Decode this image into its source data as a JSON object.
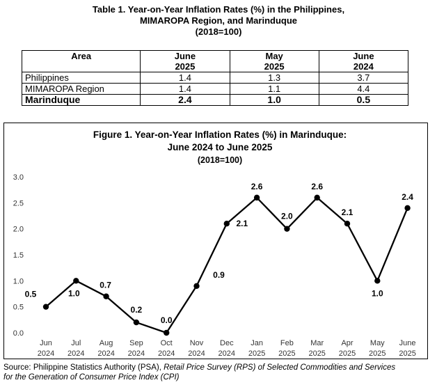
{
  "table": {
    "title_lines": [
      "Table 1. Year-on-Year Inflation Rates (%) in the Philippines,",
      "MIMAROPA Region, and Marinduque",
      "(2018=100)"
    ],
    "headers": [
      {
        "line1": "Area",
        "line2": ""
      },
      {
        "line1": "June",
        "line2": "2025"
      },
      {
        "line1": "May",
        "line2": "2025"
      },
      {
        "line1": "June",
        "line2": "2024"
      }
    ],
    "rows": [
      {
        "area": "Philippines",
        "values": [
          "1.4",
          "1.3",
          "3.7"
        ]
      },
      {
        "area": "MIMAROPA Region",
        "values": [
          "1.4",
          "1.1",
          "4.4"
        ]
      },
      {
        "area": "Marinduque",
        "values": [
          "2.4",
          "1.0",
          "0.5"
        ]
      }
    ]
  },
  "chart_data": {
    "type": "line",
    "title_lines": [
      "Figure 1. Year-on-Year Inflation Rates (%) in Marinduque:",
      "June 2024 to June 2025",
      "(2018=100)"
    ],
    "categories": [
      [
        "Jun",
        "2024"
      ],
      [
        "Jul",
        "2024"
      ],
      [
        "Aug",
        "2024"
      ],
      [
        "Sep",
        "2024"
      ],
      [
        "Oct",
        "2024"
      ],
      [
        "Nov",
        "2024"
      ],
      [
        "Dec",
        "2024"
      ],
      [
        "Jan",
        "2025"
      ],
      [
        "Feb",
        "2025"
      ],
      [
        "Mar",
        "2025"
      ],
      [
        "Apr",
        "2025"
      ],
      [
        "May",
        "2025"
      ],
      [
        "June",
        "2025"
      ]
    ],
    "values": [
      0.5,
      1.0,
      0.7,
      0.2,
      0.0,
      0.9,
      2.1,
      2.6,
      2.0,
      2.6,
      2.1,
      1.0,
      2.4
    ],
    "data_labels": [
      "0.5",
      "1.0",
      "0.7",
      "0.2",
      "0.0",
      "0.9",
      "2.1",
      "2.6",
      "2.0",
      "2.6",
      "2.1",
      "1.0",
      "2.4"
    ],
    "y_ticks": [
      "0.0",
      "0.5",
      "1.0",
      "1.5",
      "2.0",
      "2.5",
      "3.0"
    ],
    "ylim": [
      0,
      3.0
    ],
    "grid": false,
    "line_color": "#000000"
  },
  "source": {
    "prefix": "Source: Philippine Statistics Authority (PSA), ",
    "italic_1": "Retail Price Survey (RPS) of Selected Commodities and Services",
    "italic_2": "for the Generation of Consumer Price Index (CPI)"
  }
}
